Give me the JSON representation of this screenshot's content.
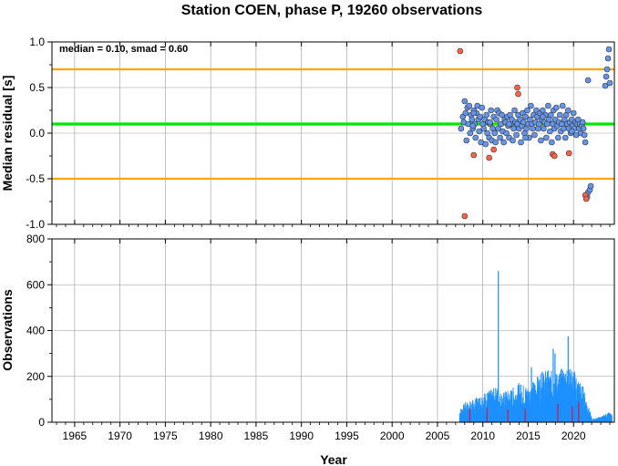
{
  "chart_data": [
    {
      "type": "scatter",
      "title": "Station COEN, phase P, 19260 observations",
      "ylabel": "Median residual [s]",
      "xlim": [
        1962.5,
        2024.5
      ],
      "ylim": [
        -1.0,
        1.0
      ],
      "yticks": [
        "-1.0",
        "-0.5",
        "0.0",
        "0.5",
        "1.0"
      ],
      "annotation": "median = 0.10, smad = 0.60",
      "reference_lines": [
        {
          "value": 0.7,
          "color": "#ffa500"
        },
        {
          "value": 0.1,
          "color": "#00e600"
        },
        {
          "value": -0.5,
          "color": "#ffa500"
        }
      ],
      "colors": {
        "normal": "#6495ed",
        "outlier": "#ff6347",
        "edge": "#333333"
      },
      "series": [
        {
          "kind": "normal",
          "points": [
            [
              2007.6,
              0.05
            ],
            [
              2007.8,
              0.18
            ],
            [
              2007.9,
              0.12
            ],
            [
              2008.0,
              0.35
            ],
            [
              2008.1,
              0.22
            ],
            [
              2008.2,
              -0.08
            ],
            [
              2008.3,
              0.28
            ],
            [
              2008.4,
              0.1
            ],
            [
              2008.5,
              0.3
            ],
            [
              2008.6,
              0.0
            ],
            [
              2008.7,
              0.2
            ],
            [
              2008.8,
              0.15
            ],
            [
              2008.9,
              0.05
            ],
            [
              2009.0,
              0.25
            ],
            [
              2009.1,
              0.1
            ],
            [
              2009.2,
              -0.05
            ],
            [
              2009.3,
              0.22
            ],
            [
              2009.4,
              0.3
            ],
            [
              2009.5,
              0.15
            ],
            [
              2009.6,
              0.02
            ],
            [
              2009.7,
              0.18
            ],
            [
              2009.8,
              -0.1
            ],
            [
              2009.9,
              0.28
            ],
            [
              2010.0,
              0.1
            ],
            [
              2010.1,
              0.05
            ],
            [
              2010.2,
              0.15
            ],
            [
              2010.3,
              -0.12
            ],
            [
              2010.4,
              0.2
            ],
            [
              2010.5,
              0.0
            ],
            [
              2010.6,
              0.12
            ],
            [
              2010.7,
              -0.05
            ],
            [
              2010.8,
              0.1
            ],
            [
              2010.9,
              0.25
            ],
            [
              2011.0,
              -0.08
            ],
            [
              2011.1,
              0.05
            ],
            [
              2011.2,
              0.18
            ],
            [
              2011.3,
              0.0
            ],
            [
              2011.4,
              -0.1
            ],
            [
              2011.5,
              0.15
            ],
            [
              2011.6,
              0.25
            ],
            [
              2011.7,
              0.05
            ],
            [
              2011.8,
              0.22
            ],
            [
              2011.9,
              -0.05
            ],
            [
              2012.0,
              0.1
            ],
            [
              2012.1,
              0.2
            ],
            [
              2012.2,
              0.02
            ],
            [
              2012.3,
              -0.1
            ],
            [
              2012.4,
              0.15
            ],
            [
              2012.5,
              0.12
            ],
            [
              2012.6,
              0.0
            ],
            [
              2012.7,
              0.18
            ],
            [
              2012.8,
              0.08
            ],
            [
              2012.9,
              -0.05
            ],
            [
              2013.0,
              0.2
            ],
            [
              2013.1,
              0.1
            ],
            [
              2013.2,
              0.15
            ],
            [
              2013.3,
              -0.08
            ],
            [
              2013.4,
              0.05
            ],
            [
              2013.5,
              0.25
            ],
            [
              2013.6,
              0.12
            ],
            [
              2013.7,
              -0.02
            ],
            [
              2013.8,
              0.1
            ],
            [
              2013.9,
              0.2
            ],
            [
              2014.0,
              0.05
            ],
            [
              2014.1,
              0.15
            ],
            [
              2014.2,
              -0.1
            ],
            [
              2014.3,
              0.08
            ],
            [
              2014.4,
              0.22
            ],
            [
              2014.5,
              0.12
            ],
            [
              2014.6,
              0.0
            ],
            [
              2014.7,
              0.18
            ],
            [
              2014.8,
              0.05
            ],
            [
              2014.9,
              0.25
            ],
            [
              2015.0,
              0.1
            ],
            [
              2015.1,
              -0.05
            ],
            [
              2015.2,
              0.15
            ],
            [
              2015.3,
              0.3
            ],
            [
              2015.4,
              0.1
            ],
            [
              2015.5,
              0.05
            ],
            [
              2015.6,
              0.2
            ],
            [
              2015.7,
              -0.02
            ],
            [
              2015.8,
              0.12
            ],
            [
              2015.9,
              0.25
            ],
            [
              2016.0,
              0.18
            ],
            [
              2016.1,
              0.05
            ],
            [
              2016.2,
              0.1
            ],
            [
              2016.3,
              0.22
            ],
            [
              2016.4,
              -0.08
            ],
            [
              2016.5,
              0.15
            ],
            [
              2016.6,
              0.25
            ],
            [
              2016.7,
              0.05
            ],
            [
              2016.8,
              0.12
            ],
            [
              2016.9,
              0.2
            ],
            [
              2017.0,
              -0.05
            ],
            [
              2017.1,
              0.1
            ],
            [
              2017.2,
              0.3
            ],
            [
              2017.3,
              0.15
            ],
            [
              2017.4,
              0.02
            ],
            [
              2017.5,
              0.2
            ],
            [
              2017.6,
              -0.1
            ],
            [
              2017.7,
              0.1
            ],
            [
              2017.8,
              0.25
            ],
            [
              2017.9,
              0.05
            ],
            [
              2018.0,
              0.15
            ],
            [
              2018.1,
              0.28
            ],
            [
              2018.2,
              0.08
            ],
            [
              2018.3,
              -0.05
            ],
            [
              2018.4,
              0.12
            ],
            [
              2018.5,
              0.2
            ],
            [
              2018.6,
              0.02
            ],
            [
              2018.7,
              0.1
            ],
            [
              2018.8,
              0.3
            ],
            [
              2018.9,
              0.05
            ],
            [
              2019.0,
              0.15
            ],
            [
              2019.1,
              -0.05
            ],
            [
              2019.2,
              0.2
            ],
            [
              2019.3,
              0.1
            ],
            [
              2019.4,
              0.25
            ],
            [
              2019.5,
              0.05
            ],
            [
              2019.6,
              0.12
            ],
            [
              2019.7,
              0.0
            ],
            [
              2019.8,
              0.15
            ],
            [
              2019.9,
              0.08
            ],
            [
              2020.0,
              0.22
            ],
            [
              2020.1,
              0.05
            ],
            [
              2020.2,
              0.12
            ],
            [
              2020.3,
              -0.02
            ],
            [
              2020.4,
              0.1
            ],
            [
              2020.5,
              0.15
            ],
            [
              2020.6,
              0.05
            ],
            [
              2020.7,
              0.1
            ],
            [
              2020.8,
              0.0
            ],
            [
              2020.9,
              0.08
            ],
            [
              2021.0,
              0.12
            ],
            [
              2021.1,
              0.05
            ],
            [
              2021.2,
              -0.02
            ],
            [
              2021.3,
              -0.1
            ],
            [
              2021.5,
              -0.7
            ],
            [
              2021.6,
              -0.65
            ],
            [
              2021.8,
              -0.62
            ],
            [
              2021.9,
              -0.58
            ],
            [
              2021.6,
              0.58
            ],
            [
              2023.5,
              0.52
            ],
            [
              2023.6,
              0.62
            ],
            [
              2023.7,
              0.7
            ],
            [
              2023.8,
              0.82
            ],
            [
              2023.9,
              0.92
            ],
            [
              2024.0,
              0.55
            ],
            [
              2009.0,
              0.22
            ],
            [
              2010.8,
              0.12
            ],
            [
              2012.9,
              0.1
            ],
            [
              2016.6,
              0.18
            ],
            [
              2019.8,
              0.02
            ],
            [
              2014.7,
              -0.05
            ],
            [
              2008.9,
              0.08
            ]
          ]
        },
        {
          "kind": "outlier",
          "points": [
            [
              2007.5,
              0.9
            ],
            [
              2008.0,
              -0.91
            ],
            [
              2009.0,
              -0.24
            ],
            [
              2010.7,
              -0.27
            ],
            [
              2011.2,
              -0.18
            ],
            [
              2013.8,
              0.5
            ],
            [
              2013.9,
              0.43
            ],
            [
              2017.7,
              -0.23
            ],
            [
              2017.9,
              -0.25
            ],
            [
              2019.5,
              -0.22
            ],
            [
              2021.3,
              -0.68
            ],
            [
              2021.4,
              -0.72
            ]
          ]
        }
      ]
    },
    {
      "type": "bar",
      "ylabel": "Observations",
      "xlabel": "Year",
      "xlim": [
        1962.5,
        2024.5
      ],
      "ylim": [
        0,
        800
      ],
      "yticks": [
        "0",
        "200",
        "400",
        "600",
        "800"
      ],
      "xticks": [
        "1965",
        "1970",
        "1975",
        "1980",
        "1985",
        "1990",
        "1995",
        "2000",
        "2005",
        "2010",
        "2015",
        "2020"
      ],
      "bar_color": "#1e90ff",
      "highlight_color": "#dc143c",
      "anchors": [
        [
          2007.4,
          40
        ],
        [
          2008.0,
          60
        ],
        [
          2009.0,
          70
        ],
        [
          2010.0,
          90
        ],
        [
          2011.0,
          100
        ],
        [
          2011.5,
          110
        ],
        [
          2012.0,
          90
        ],
        [
          2013.0,
          100
        ],
        [
          2014.0,
          120
        ],
        [
          2015.0,
          110
        ],
        [
          2016.0,
          140
        ],
        [
          2017.0,
          160
        ],
        [
          2018.0,
          150
        ],
        [
          2019.0,
          170
        ],
        [
          2020.0,
          160
        ],
        [
          2021.0,
          110
        ],
        [
          2021.5,
          60
        ],
        [
          2022.0,
          10
        ],
        [
          2023.2,
          20
        ],
        [
          2023.8,
          30
        ],
        [
          2024.2,
          25
        ]
      ],
      "spikes": [
        [
          2011.65,
          660
        ],
        [
          2017.7,
          320
        ],
        [
          2017.9,
          300
        ],
        [
          2019.35,
          375
        ],
        [
          2015.3,
          240
        ],
        [
          2016.5,
          220
        ],
        [
          2020.0,
          200
        ]
      ],
      "highlights": [
        [
          2008.5,
          60
        ],
        [
          2010.4,
          65
        ],
        [
          2012.7,
          55
        ],
        [
          2014.6,
          60
        ],
        [
          2018.2,
          80
        ],
        [
          2019.8,
          70
        ],
        [
          2020.5,
          90
        ]
      ]
    }
  ]
}
